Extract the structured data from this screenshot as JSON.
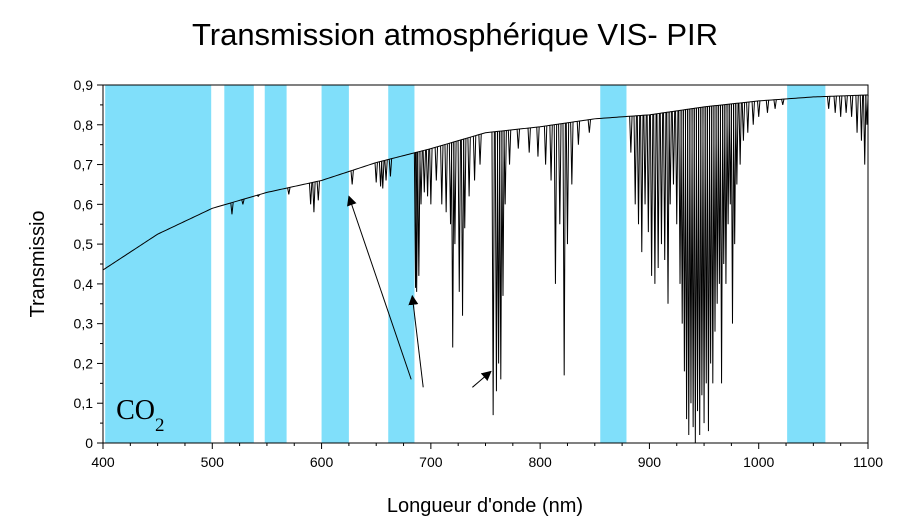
{
  "chart_data": {
    "type": "line",
    "title": "Transmission atmosphérique VIS- PIR",
    "xlabel": "Longueur d'onde (nm)",
    "ylabel": "Transmissio",
    "xlim": [
      400,
      1100
    ],
    "ylim": [
      0,
      0.9
    ],
    "x_ticks": [
      400,
      500,
      600,
      700,
      800,
      900,
      1000,
      1100
    ],
    "x_tick_labels": [
      "400",
      "500",
      "600",
      "700",
      "800",
      "900",
      "1000",
      "1100"
    ],
    "y_ticks": [
      0,
      0.1,
      0.2,
      0.3,
      0.4,
      0.5,
      0.6,
      0.7,
      0.8,
      0.9
    ],
    "y_tick_labels": [
      "0",
      "0,1",
      "0,2",
      "0,3",
      "0,4",
      "0,5",
      "0,6",
      "0,7",
      "0,8",
      "0,9"
    ],
    "grid": false,
    "line_color": "#000000",
    "band_color": "#80dffa",
    "highlight_bands": [
      [
        402,
        499
      ],
      [
        511,
        538
      ],
      [
        548,
        568
      ],
      [
        600,
        625
      ],
      [
        661,
        685
      ],
      [
        855,
        879
      ],
      [
        1026,
        1061
      ]
    ],
    "envelope": {
      "x": [
        400,
        450,
        500,
        550,
        600,
        650,
        700,
        750,
        800,
        850,
        900,
        950,
        1000,
        1050,
        1100
      ],
      "y": [
        0.435,
        0.525,
        0.59,
        0.63,
        0.66,
        0.705,
        0.74,
        0.78,
        0.795,
        0.815,
        0.825,
        0.845,
        0.86,
        0.87,
        0.875
      ]
    },
    "absorption_lines": [
      {
        "x": 518,
        "y": 0.575
      },
      {
        "x": 528,
        "y": 0.6
      },
      {
        "x": 542,
        "y": 0.62
      },
      {
        "x": 570,
        "y": 0.625
      },
      {
        "x": 590,
        "y": 0.6
      },
      {
        "x": 593,
        "y": 0.58
      },
      {
        "x": 597,
        "y": 0.61
      },
      {
        "x": 628,
        "y": 0.65
      },
      {
        "x": 650,
        "y": 0.655
      },
      {
        "x": 654,
        "y": 0.645
      },
      {
        "x": 656,
        "y": 0.64
      },
      {
        "x": 659,
        "y": 0.66
      },
      {
        "x": 663,
        "y": 0.67
      },
      {
        "x": 686,
        "y": 0.39
      },
      {
        "x": 687,
        "y": 0.38
      },
      {
        "x": 689,
        "y": 0.42
      },
      {
        "x": 691,
        "y": 0.6
      },
      {
        "x": 694,
        "y": 0.63
      },
      {
        "x": 697,
        "y": 0.62
      },
      {
        "x": 700,
        "y": 0.6
      },
      {
        "x": 705,
        "y": 0.66
      },
      {
        "x": 710,
        "y": 0.6
      },
      {
        "x": 714,
        "y": 0.58
      },
      {
        "x": 718,
        "y": 0.55
      },
      {
        "x": 720,
        "y": 0.24
      },
      {
        "x": 722,
        "y": 0.5
      },
      {
        "x": 726,
        "y": 0.38
      },
      {
        "x": 729,
        "y": 0.32
      },
      {
        "x": 731,
        "y": 0.54
      },
      {
        "x": 735,
        "y": 0.62
      },
      {
        "x": 740,
        "y": 0.66
      },
      {
        "x": 745,
        "y": 0.7
      },
      {
        "x": 757,
        "y": 0.07
      },
      {
        "x": 760,
        "y": 0.13
      },
      {
        "x": 762,
        "y": 0.2
      },
      {
        "x": 764,
        "y": 0.16
      },
      {
        "x": 766,
        "y": 0.37
      },
      {
        "x": 768,
        "y": 0.6
      },
      {
        "x": 772,
        "y": 0.7
      },
      {
        "x": 780,
        "y": 0.74
      },
      {
        "x": 790,
        "y": 0.73
      },
      {
        "x": 798,
        "y": 0.72
      },
      {
        "x": 805,
        "y": 0.7
      },
      {
        "x": 810,
        "y": 0.66
      },
      {
        "x": 814,
        "y": 0.4
      },
      {
        "x": 818,
        "y": 0.55
      },
      {
        "x": 822,
        "y": 0.17
      },
      {
        "x": 825,
        "y": 0.5
      },
      {
        "x": 829,
        "y": 0.65
      },
      {
        "x": 835,
        "y": 0.75
      },
      {
        "x": 845,
        "y": 0.78
      },
      {
        "x": 883,
        "y": 0.73
      },
      {
        "x": 887,
        "y": 0.6
      },
      {
        "x": 890,
        "y": 0.55
      },
      {
        "x": 893,
        "y": 0.48
      },
      {
        "x": 896,
        "y": 0.6
      },
      {
        "x": 899,
        "y": 0.53
      },
      {
        "x": 902,
        "y": 0.42
      },
      {
        "x": 905,
        "y": 0.4
      },
      {
        "x": 908,
        "y": 0.44
      },
      {
        "x": 911,
        "y": 0.5
      },
      {
        "x": 914,
        "y": 0.46
      },
      {
        "x": 917,
        "y": 0.35
      },
      {
        "x": 919,
        "y": 0.6
      },
      {
        "x": 922,
        "y": 0.65
      },
      {
        "x": 925,
        "y": 0.55
      },
      {
        "x": 928,
        "y": 0.4
      },
      {
        "x": 930,
        "y": 0.3
      },
      {
        "x": 932,
        "y": 0.18
      },
      {
        "x": 934,
        "y": 0.06
      },
      {
        "x": 936,
        "y": 0.02
      },
      {
        "x": 938,
        "y": 0.1
      },
      {
        "x": 940,
        "y": 0.04
      },
      {
        "x": 942,
        "y": 0.0
      },
      {
        "x": 944,
        "y": 0.08
      },
      {
        "x": 946,
        "y": 0.02
      },
      {
        "x": 948,
        "y": 0.12
      },
      {
        "x": 950,
        "y": 0.05
      },
      {
        "x": 952,
        "y": 0.15
      },
      {
        "x": 954,
        "y": 0.03
      },
      {
        "x": 956,
        "y": 0.2
      },
      {
        "x": 958,
        "y": 0.15
      },
      {
        "x": 960,
        "y": 0.28
      },
      {
        "x": 962,
        "y": 0.35
      },
      {
        "x": 964,
        "y": 0.4
      },
      {
        "x": 966,
        "y": 0.15
      },
      {
        "x": 968,
        "y": 0.45
      },
      {
        "x": 970,
        "y": 0.4
      },
      {
        "x": 972,
        "y": 0.55
      },
      {
        "x": 974,
        "y": 0.6
      },
      {
        "x": 976,
        "y": 0.3
      },
      {
        "x": 978,
        "y": 0.5
      },
      {
        "x": 980,
        "y": 0.65
      },
      {
        "x": 983,
        "y": 0.7
      },
      {
        "x": 986,
        "y": 0.76
      },
      {
        "x": 990,
        "y": 0.78
      },
      {
        "x": 995,
        "y": 0.8
      },
      {
        "x": 1000,
        "y": 0.82
      },
      {
        "x": 1008,
        "y": 0.83
      },
      {
        "x": 1015,
        "y": 0.84
      },
      {
        "x": 1022,
        "y": 0.85
      },
      {
        "x": 1064,
        "y": 0.84
      },
      {
        "x": 1070,
        "y": 0.83
      },
      {
        "x": 1075,
        "y": 0.82
      },
      {
        "x": 1080,
        "y": 0.83
      },
      {
        "x": 1085,
        "y": 0.82
      },
      {
        "x": 1090,
        "y": 0.78
      },
      {
        "x": 1094,
        "y": 0.76
      },
      {
        "x": 1097,
        "y": 0.7
      },
      {
        "x": 1099,
        "y": 0.8
      }
    ],
    "annotation": {
      "text": "CO",
      "subscript": "2",
      "label_at": {
        "x": 412,
        "y": 0.06
      },
      "arrows": [
        {
          "from": {
            "x": 682,
            "y": 0.16
          },
          "to": {
            "x": 625,
            "y": 0.62
          }
        },
        {
          "from": {
            "x": 693,
            "y": 0.14
          },
          "to": {
            "x": 683,
            "y": 0.37
          }
        },
        {
          "from": {
            "x": 738,
            "y": 0.14
          },
          "to": {
            "x": 755,
            "y": 0.18
          }
        }
      ]
    }
  }
}
